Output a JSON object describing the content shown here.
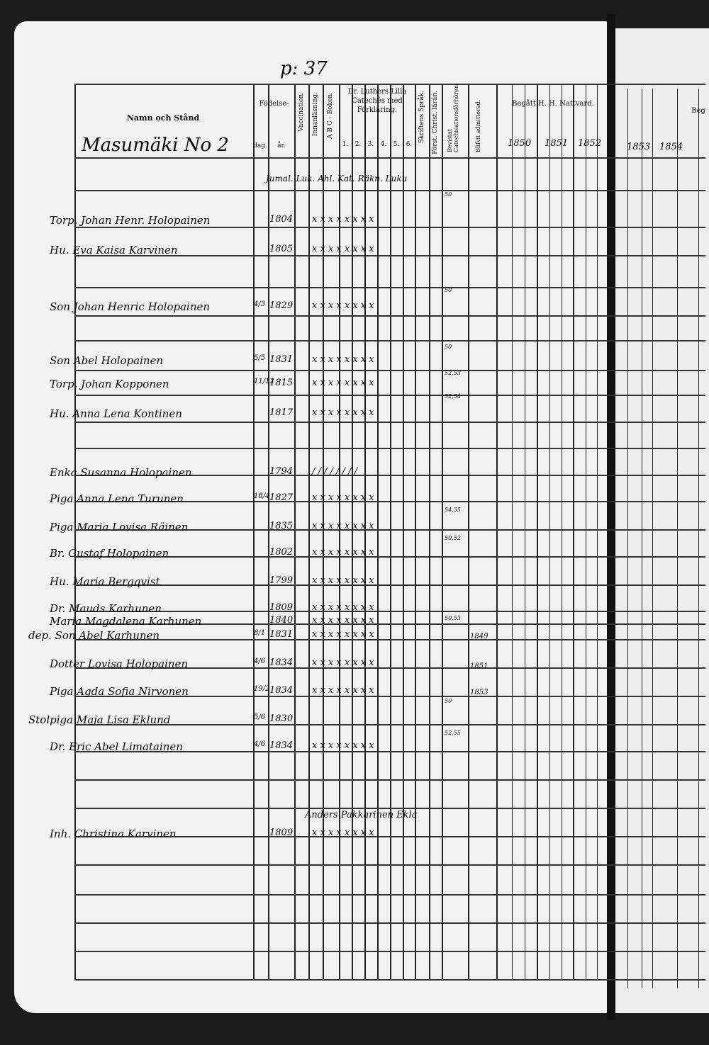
{
  "page_number": "p: 37",
  "header": {
    "name_col": "Namn och Stånd",
    "birth": "Födelse-",
    "birth_day": "dag.",
    "birth_year": "år.",
    "vaccination": "Vaccination.",
    "innanlasning": "Innanläsning.",
    "abc": "A B C - Boken.",
    "luther": "Dr. Luthers Lilla Catechés med Förklaring.",
    "luther_cols": [
      "1.",
      "2.",
      "3.",
      "4.",
      "5.",
      "6."
    ],
    "skriftens": "Skriftens Språk.",
    "forst": "Först. Christ. lärán.",
    "bevistat": "Bevistat Catechisationsförhören.",
    "blifvit": "Blifvit admitterad.",
    "begatt": "Begått H. H. Nattvard.",
    "years": [
      "1850",
      "1851",
      "1852"
    ],
    "right_header": "Beg",
    "right_years": [
      "1853",
      "1854"
    ]
  },
  "farm_title": "Masumäki No 2",
  "annotation_row": "Jumal. Luk. Ahl. Kat. Räkn. Luku",
  "rows": [
    {
      "name": "Torp. Johan Henr. Holopainen",
      "day": "",
      "year": "1804",
      "marks": "x x x x x x x x"
    },
    {
      "name": "Hu. Eva Kaisa Karvinen",
      "day": "",
      "year": "1805",
      "marks": "x x x x x x x x"
    },
    {
      "name": "Son Johan Henric Holopainen",
      "day": "4/3",
      "year": "1829",
      "marks": "x x x x x x x x"
    },
    {
      "name": "Son Abel Holopainen",
      "day": "5/5",
      "year": "1831",
      "marks": "x x x x x x x x"
    },
    {
      "name": "Torp. Johan Kopponen",
      "day": "11/12",
      "year": "1815",
      "marks": "x x x x x x x x"
    },
    {
      "name": "Hu. Anna Lena Kontinen",
      "day": "",
      "year": "1817",
      "marks": "x x x x x x x x"
    },
    {
      "name": "Enka Susanna Holopainen",
      "day": "",
      "year": "1794",
      "marks": "/ / / / / / / /"
    },
    {
      "name": "Piga Anna Lena Turunen",
      "day": "18/4",
      "year": "1827",
      "marks": "x x x x x x x x"
    },
    {
      "name": "Piga Maria Lovisa Räinen",
      "day": "",
      "year": "1835",
      "marks": "x x x x x x x x"
    },
    {
      "name": "Br. Gustaf Holopainen",
      "day": "",
      "year": "1802",
      "marks": "x x x x x x x x"
    },
    {
      "name": "Hu. Maria Bergqvist",
      "day": "",
      "year": "1799",
      "marks": "x x x x x x x x"
    },
    {
      "name": "Dr. Mauds Karhunen",
      "day": "",
      "year": "1809",
      "marks": "x x x x x x x x"
    },
    {
      "name": "Maria Magdalena Karhunen",
      "day": "",
      "year": "1840",
      "marks": "x x x x x x x x"
    },
    {
      "name": "dep. Son Abel Karhunen",
      "day": "8/1",
      "year": "1831",
      "marks": "x x x x x x x x"
    },
    {
      "name": "Dotter Lovisa Holopainen",
      "day": "4/6",
      "year": "1834",
      "marks": "x x x x x x x x"
    },
    {
      "name": "Piga Agda Sofia Nirvonen",
      "day": "19/2",
      "year": "1834",
      "marks": "x x x x x x x x"
    },
    {
      "name": "Stolpiga Maja Lisa Eklund",
      "day": "5/6",
      "year": "1830",
      "marks": ""
    },
    {
      "name": "Dr. Eric Abel Limatainen",
      "day": "4/6",
      "year": "1834",
      "marks": "x x x x x x x x"
    },
    {
      "name": "Inh. Christina Karvinen",
      "day": "",
      "year": "1809",
      "marks": "x x x x x x x x"
    }
  ],
  "notes": {
    "bevistat": [
      "50",
      "50",
      "50",
      "52,53",
      "52,54",
      "54,55",
      "50,52",
      "50,53",
      "50",
      "52,55"
    ],
    "admitted": [
      "1849",
      "1851",
      "1853"
    ],
    "last_row_note": "Anders Pakkarinen Ekla"
  }
}
